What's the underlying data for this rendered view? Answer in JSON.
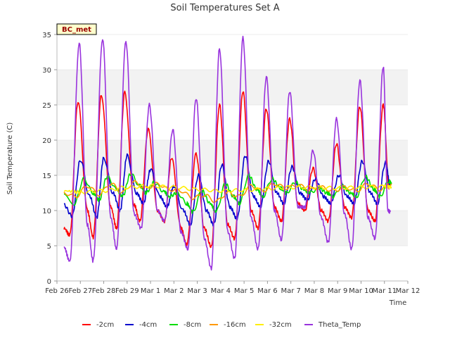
{
  "chart_data": {
    "type": "line",
    "title": "Soil Temperatures Set A",
    "xlabel": "Time",
    "ylabel": "Soil Temperature (C)",
    "badge": "BC_met",
    "xlim": [
      0,
      15
    ],
    "ylim": [
      0,
      35
    ],
    "y_ticks": [
      0,
      5,
      10,
      15,
      20,
      25,
      30,
      35
    ],
    "x_ticks": [
      {
        "v": 0,
        "label": "Feb 26"
      },
      {
        "v": 1,
        "label": "Feb 27"
      },
      {
        "v": 2,
        "label": "Feb 28"
      },
      {
        "v": 3,
        "label": "Feb 29"
      },
      {
        "v": 4,
        "label": "Mar 1"
      },
      {
        "v": 5,
        "label": "Mar 2"
      },
      {
        "v": 6,
        "label": "Mar 3"
      },
      {
        "v": 7,
        "label": "Mar 4"
      },
      {
        "v": 8,
        "label": "Mar 5"
      },
      {
        "v": 9,
        "label": "Mar 6"
      },
      {
        "v": 10,
        "label": "Mar 7"
      },
      {
        "v": 11,
        "label": "Mar 8"
      },
      {
        "v": 12,
        "label": "Mar 9"
      },
      {
        "v": 13,
        "label": "Mar 10"
      },
      {
        "v": 14,
        "label": "Mar 11"
      },
      {
        "v": 15,
        "label": "Mar 12"
      }
    ],
    "grid": "horizontal bands",
    "legend_position": "bottom",
    "daily_points": {
      "days": [
        0,
        1,
        2,
        3,
        4,
        5,
        6,
        7,
        8,
        9,
        10,
        11,
        12,
        13,
        14
      ],
      "note_hours": [
        6,
        15
      ]
    },
    "series": [
      {
        "name": "-2cm",
        "color": "#ff0000",
        "offset_hours": 0,
        "points": [
          [
            0.3,
            7.5
          ],
          [
            0.55,
            6.5
          ],
          [
            0.9,
            25.5
          ],
          [
            1.3,
            10.0
          ],
          [
            1.55,
            6.2
          ],
          [
            1.9,
            26.5
          ],
          [
            2.3,
            10.5
          ],
          [
            2.55,
            7.5
          ],
          [
            2.9,
            26.8
          ],
          [
            3.3,
            10.8
          ],
          [
            3.55,
            8.5
          ],
          [
            3.9,
            21.5
          ],
          [
            4.3,
            10.0
          ],
          [
            4.6,
            8.5
          ],
          [
            4.9,
            17.5
          ],
          [
            5.3,
            7.5
          ],
          [
            5.55,
            5.2
          ],
          [
            5.95,
            18.0
          ],
          [
            6.3,
            7.5
          ],
          [
            6.6,
            4.8
          ],
          [
            6.95,
            25.0
          ],
          [
            7.3,
            8.0
          ],
          [
            7.6,
            6.0
          ],
          [
            7.95,
            27.0
          ],
          [
            8.3,
            10.0
          ],
          [
            8.6,
            7.5
          ],
          [
            8.95,
            24.5
          ],
          [
            9.3,
            10.5
          ],
          [
            9.6,
            8.5
          ],
          [
            9.95,
            23.0
          ],
          [
            10.3,
            11.0
          ],
          [
            10.6,
            10.0
          ],
          [
            10.95,
            16.0
          ],
          [
            11.3,
            10.0
          ],
          [
            11.6,
            8.5
          ],
          [
            11.95,
            19.5
          ],
          [
            12.3,
            10.5
          ],
          [
            12.6,
            9.0
          ],
          [
            12.95,
            24.8
          ],
          [
            13.3,
            10.0
          ],
          [
            13.6,
            8.5
          ],
          [
            13.95,
            25.0
          ],
          [
            14.2,
            13.0
          ]
        ]
      },
      {
        "name": "-4cm",
        "color": "#0000cc",
        "points": [
          [
            0.3,
            10.8
          ],
          [
            0.65,
            9.2
          ],
          [
            1.0,
            17.2
          ],
          [
            1.4,
            12.0
          ],
          [
            1.7,
            9.0
          ],
          [
            2.0,
            17.5
          ],
          [
            2.4,
            12.5
          ],
          [
            2.7,
            10.0
          ],
          [
            3.0,
            17.8
          ],
          [
            3.4,
            12.5
          ],
          [
            3.7,
            11.0
          ],
          [
            4.0,
            15.8
          ],
          [
            4.4,
            12.0
          ],
          [
            4.7,
            10.5
          ],
          [
            5.0,
            13.5
          ],
          [
            5.4,
            10.0
          ],
          [
            5.7,
            8.0
          ],
          [
            6.05,
            15.0
          ],
          [
            6.4,
            10.0
          ],
          [
            6.7,
            8.0
          ],
          [
            7.05,
            16.5
          ],
          [
            7.4,
            10.5
          ],
          [
            7.7,
            8.8
          ],
          [
            8.05,
            17.8
          ],
          [
            8.4,
            12.0
          ],
          [
            8.7,
            10.5
          ],
          [
            9.05,
            17.0
          ],
          [
            9.4,
            12.5
          ],
          [
            9.7,
            11.0
          ],
          [
            10.05,
            16.2
          ],
          [
            10.4,
            12.5
          ],
          [
            10.7,
            11.5
          ],
          [
            11.05,
            14.5
          ],
          [
            11.4,
            12.0
          ],
          [
            11.7,
            11.0
          ],
          [
            12.05,
            15.0
          ],
          [
            12.4,
            12.0
          ],
          [
            12.7,
            11.0
          ],
          [
            13.05,
            17.0
          ],
          [
            13.4,
            12.5
          ],
          [
            13.7,
            11.0
          ],
          [
            14.05,
            16.8
          ],
          [
            14.25,
            13.5
          ]
        ]
      },
      {
        "name": "-8cm",
        "color": "#00dd00",
        "points": [
          [
            0.3,
            12.5
          ],
          [
            0.75,
            11.0
          ],
          [
            1.15,
            14.5
          ],
          [
            1.55,
            12.5
          ],
          [
            1.8,
            11.5
          ],
          [
            2.15,
            14.8
          ],
          [
            2.55,
            13.0
          ],
          [
            2.8,
            12.0
          ],
          [
            3.15,
            15.2
          ],
          [
            3.55,
            13.5
          ],
          [
            3.8,
            12.5
          ],
          [
            4.15,
            14.0
          ],
          [
            4.55,
            12.8
          ],
          [
            4.8,
            12.0
          ],
          [
            5.15,
            12.5
          ],
          [
            5.55,
            11.0
          ],
          [
            5.8,
            9.8
          ],
          [
            6.2,
            12.8
          ],
          [
            6.55,
            11.0
          ],
          [
            6.8,
            9.8
          ],
          [
            7.2,
            13.8
          ],
          [
            7.55,
            12.0
          ],
          [
            7.8,
            11.0
          ],
          [
            8.2,
            15.0
          ],
          [
            8.55,
            13.0
          ],
          [
            8.8,
            12.0
          ],
          [
            9.2,
            14.5
          ],
          [
            9.55,
            13.2
          ],
          [
            9.8,
            12.5
          ],
          [
            10.2,
            14.0
          ],
          [
            10.55,
            13.0
          ],
          [
            10.8,
            12.5
          ],
          [
            11.2,
            13.2
          ],
          [
            11.55,
            12.5
          ],
          [
            11.8,
            12.0
          ],
          [
            12.2,
            13.5
          ],
          [
            12.55,
            12.5
          ],
          [
            12.8,
            12.0
          ],
          [
            13.2,
            14.8
          ],
          [
            13.55,
            13.0
          ],
          [
            13.8,
            12.0
          ],
          [
            14.2,
            14.2
          ],
          [
            14.3,
            13.8
          ]
        ]
      },
      {
        "name": "-16cm",
        "color": "#ff9900",
        "points": [
          [
            0.3,
            12.5
          ],
          [
            0.8,
            12.0
          ],
          [
            1.3,
            13.5
          ],
          [
            1.8,
            12.3
          ],
          [
            2.3,
            13.8
          ],
          [
            2.8,
            12.6
          ],
          [
            3.3,
            14.0
          ],
          [
            3.8,
            13.2
          ],
          [
            4.3,
            13.8
          ],
          [
            4.8,
            13.0
          ],
          [
            5.3,
            12.8
          ],
          [
            5.8,
            11.8
          ],
          [
            6.3,
            12.2
          ],
          [
            6.8,
            11.3
          ],
          [
            7.3,
            12.5
          ],
          [
            7.8,
            12.0
          ],
          [
            8.3,
            13.5
          ],
          [
            8.8,
            12.8
          ],
          [
            9.3,
            13.8
          ],
          [
            9.8,
            13.2
          ],
          [
            10.3,
            13.6
          ],
          [
            10.8,
            13.0
          ],
          [
            11.3,
            13.3
          ],
          [
            11.8,
            12.8
          ],
          [
            12.3,
            13.3
          ],
          [
            12.8,
            12.8
          ],
          [
            13.3,
            13.8
          ],
          [
            13.8,
            13.0
          ],
          [
            14.3,
            13.8
          ]
        ]
      },
      {
        "name": "-32cm",
        "color": "#ffee00",
        "points": [
          [
            0.3,
            12.8
          ],
          [
            1.0,
            12.6
          ],
          [
            2.0,
            12.8
          ],
          [
            3.0,
            13.3
          ],
          [
            4.0,
            13.5
          ],
          [
            5.0,
            13.3
          ],
          [
            6.0,
            13.0
          ],
          [
            7.0,
            12.8
          ],
          [
            8.0,
            12.9
          ],
          [
            9.0,
            13.1
          ],
          [
            10.0,
            13.3
          ],
          [
            11.0,
            13.3
          ],
          [
            12.0,
            13.2
          ],
          [
            13.0,
            13.3
          ],
          [
            14.0,
            13.4
          ],
          [
            14.3,
            13.4
          ]
        ]
      },
      {
        "name": "Theta_Temp",
        "color": "#9933dd",
        "points": [
          [
            0.3,
            4.8
          ],
          [
            0.55,
            2.8
          ],
          [
            0.95,
            33.8
          ],
          [
            1.3,
            8.0
          ],
          [
            1.55,
            2.8
          ],
          [
            1.95,
            34.5
          ],
          [
            2.3,
            9.0
          ],
          [
            2.55,
            4.5
          ],
          [
            2.95,
            34.0
          ],
          [
            3.3,
            9.5
          ],
          [
            3.6,
            7.5
          ],
          [
            3.95,
            25.0
          ],
          [
            4.3,
            10.0
          ],
          [
            4.6,
            8.5
          ],
          [
            4.95,
            21.5
          ],
          [
            5.3,
            7.0
          ],
          [
            5.6,
            4.5
          ],
          [
            5.95,
            26.0
          ],
          [
            6.3,
            6.0
          ],
          [
            6.6,
            1.8
          ],
          [
            6.95,
            33.0
          ],
          [
            7.3,
            7.0
          ],
          [
            7.6,
            3.2
          ],
          [
            7.95,
            34.5
          ],
          [
            8.3,
            9.0
          ],
          [
            8.6,
            4.5
          ],
          [
            8.95,
            29.0
          ],
          [
            9.3,
            10.0
          ],
          [
            9.6,
            5.8
          ],
          [
            9.95,
            27.0
          ],
          [
            10.3,
            10.5
          ],
          [
            10.6,
            10.5
          ],
          [
            10.95,
            18.5
          ],
          [
            11.3,
            9.0
          ],
          [
            11.6,
            5.5
          ],
          [
            11.95,
            23.0
          ],
          [
            12.3,
            9.5
          ],
          [
            12.6,
            4.5
          ],
          [
            12.95,
            28.5
          ],
          [
            13.3,
            9.0
          ],
          [
            13.6,
            6.0
          ],
          [
            13.95,
            30.5
          ],
          [
            14.15,
            10.0
          ],
          [
            14.25,
            9.8
          ]
        ]
      }
    ]
  }
}
